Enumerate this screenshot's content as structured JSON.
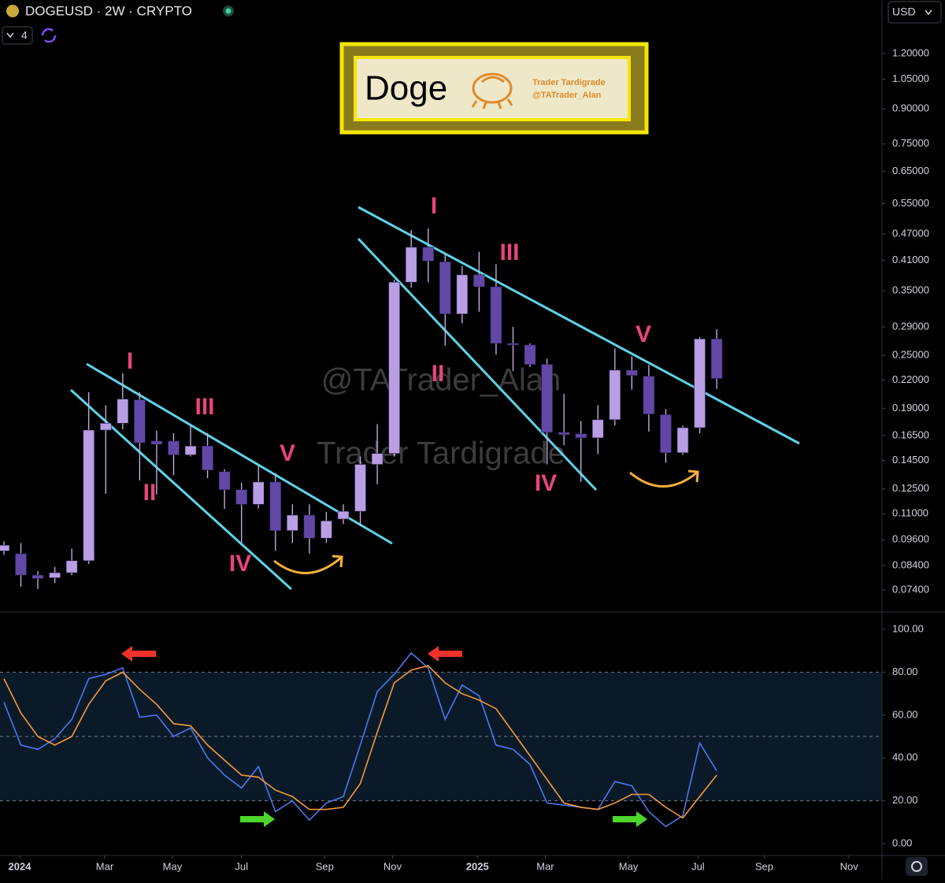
{
  "header": {
    "symbol": "DOGEUSD · 2W · CRYPTO",
    "indicator_count": 4,
    "currency": "USD"
  },
  "logo": {
    "title": "Doge",
    "brand": "Trader Tardigrade",
    "handle": "@TATrader_Alan"
  },
  "watermark": [
    "@TATrader_Alan",
    "Trader Tardigrade"
  ],
  "chart_data": [
    {
      "type": "candlestick",
      "log_scale": true,
      "up_color": "#b89ee2",
      "down_color": "#6148a6",
      "wick_color": "#c9b6ee",
      "ylim": [
        0.0665,
        1.584
      ],
      "yticks": [
        {
          "value": 1.2,
          "label": "1.20000"
        },
        {
          "value": 1.05,
          "label": "1.05000"
        },
        {
          "value": 0.9,
          "label": "0.90000"
        },
        {
          "value": 0.75,
          "label": "0.75000"
        },
        {
          "value": 0.65,
          "label": "0.65000"
        },
        {
          "value": 0.55,
          "label": "0.55000"
        },
        {
          "value": 0.47,
          "label": "0.47000"
        },
        {
          "value": 0.41,
          "label": "0.41000"
        },
        {
          "value": 0.35,
          "label": "0.35000"
        },
        {
          "value": 0.29,
          "label": "0.29000"
        },
        {
          "value": 0.25,
          "label": "0.25000"
        },
        {
          "value": 0.22,
          "label": "0.22000"
        },
        {
          "value": 0.19,
          "label": "0.19000"
        },
        {
          "value": 0.165,
          "label": "0.16500"
        },
        {
          "value": 0.145,
          "label": "0.14500"
        },
        {
          "value": 0.125,
          "label": "0.12500"
        },
        {
          "value": 0.11,
          "label": "0.11000"
        },
        {
          "value": 0.096,
          "label": "0.09600"
        },
        {
          "value": 0.084,
          "label": "0.08400"
        },
        {
          "value": 0.074,
          "label": "0.07400"
        }
      ],
      "open": [
        0.0906,
        0.0893,
        0.0799,
        0.0788,
        0.0809,
        0.0861,
        0.1697,
        0.1758,
        0.1986,
        0.1603,
        0.1603,
        0.1492,
        0.1562,
        0.1367,
        0.1245,
        0.1154,
        0.1296,
        0.1007,
        0.1091,
        0.0968,
        0.1069,
        0.1113,
        0.142,
        0.1503,
        0.3658,
        0.4386,
        0.4066,
        0.3102,
        0.3801,
        0.3572,
        0.2662,
        0.2641,
        0.2387,
        0.1677,
        0.1664,
        0.163,
        0.1791,
        0.2317,
        0.2245,
        0.1838,
        0.1509,
        0.1718,
        0.2725
      ],
      "high": [
        0.0952,
        0.0944,
        0.0816,
        0.0833,
        0.0917,
        0.2065,
        0.1931,
        0.2281,
        0.2065,
        0.1691,
        0.167,
        0.1738,
        0.167,
        0.1385,
        0.1291,
        0.1408,
        0.1358,
        0.1154,
        0.1154,
        0.1109,
        0.1154,
        0.148,
        0.1751,
        0.3701,
        0.4796,
        0.4835,
        0.4251,
        0.3982,
        0.4285,
        0.4016,
        0.29,
        0.2662,
        0.2459,
        0.2048,
        0.1778,
        0.1931,
        0.2592,
        0.249,
        0.238,
        0.1892,
        0.1738,
        0.2748,
        0.2864
      ],
      "low": [
        0.0888,
        0.0752,
        0.0743,
        0.0767,
        0.0799,
        0.0847,
        0.1219,
        0.1704,
        0.1306,
        0.1214,
        0.1342,
        0.148,
        0.1322,
        0.1127,
        0.0944,
        0.1131,
        0.0906,
        0.0944,
        0.0893,
        0.0944,
        0.1042,
        0.103,
        0.1281,
        0.148,
        0.3557,
        0.3658,
        0.2633,
        0.2954,
        0.3138,
        0.251,
        0.2305,
        0.2357,
        0.142,
        0.1569,
        0.1296,
        0.1498,
        0.1738,
        0.2092,
        0.1684,
        0.1432,
        0.1492,
        0.167,
        0.2101
      ],
      "close": [
        0.0933,
        0.0799,
        0.0785,
        0.0809,
        0.0861,
        0.1697,
        0.1758,
        0.1993,
        0.1589,
        0.1576,
        0.1492,
        0.1562,
        0.1379,
        0.1245,
        0.1154,
        0.1296,
        0.1007,
        0.1091,
        0.0968,
        0.1059,
        0.1113,
        0.142,
        0.1503,
        0.3658,
        0.4386,
        0.4083,
        0.3102,
        0.3801,
        0.3572,
        0.2662,
        0.2641,
        0.2387,
        0.1677,
        0.1657,
        0.163,
        0.1791,
        0.2317,
        0.2254,
        0.1845,
        0.1509,
        0.1718,
        0.2725,
        0.2218
      ],
      "annotations": [
        "I",
        "II",
        "III",
        "IV",
        "V",
        "I",
        "II",
        "III",
        "IV",
        "V"
      ]
    },
    {
      "type": "line",
      "ylim": [
        -5.1,
        107.7
      ],
      "yticks": [
        {
          "value": 100,
          "label": "100.00"
        },
        {
          "value": 80,
          "label": "80.00"
        },
        {
          "value": 60,
          "label": "60.00"
        },
        {
          "value": 40,
          "label": "40.00"
        },
        {
          "value": 20,
          "label": "20.00"
        },
        {
          "value": 0,
          "label": "0.00"
        }
      ],
      "levels": [
        80,
        50,
        20
      ],
      "band_color": "#0b1a28",
      "xlim": [
        -0.23,
        51.74
      ],
      "xticks": [
        {
          "value": 0.93,
          "label": "2024"
        },
        {
          "value": 5.94,
          "label": "Mar"
        },
        {
          "value": 9.93,
          "label": "May"
        },
        {
          "value": 14.0,
          "label": "Jul"
        },
        {
          "value": 18.9,
          "label": "Sep"
        },
        {
          "value": 22.9,
          "label": "Nov"
        },
        {
          "value": 27.9,
          "label": "2025"
        },
        {
          "value": 31.9,
          "label": "Mar"
        },
        {
          "value": 36.8,
          "label": "May"
        },
        {
          "value": 40.9,
          "label": "Jul"
        },
        {
          "value": 44.8,
          "label": "Sep"
        },
        {
          "value": 49.8,
          "label": "Nov"
        }
      ],
      "series": [
        {
          "color": "#4b78ee",
          "values": [
            66,
            46,
            44,
            49,
            58,
            77,
            79,
            82,
            59,
            60,
            50,
            54,
            40,
            32,
            26,
            36,
            15,
            20,
            11,
            19,
            22,
            46,
            71,
            79,
            89,
            82,
            58,
            74,
            69,
            46,
            44,
            37,
            19,
            18,
            17,
            16,
            29,
            27,
            15,
            8,
            13,
            47,
            34
          ]
        },
        {
          "color": "#f39a3c",
          "values": [
            77,
            61,
            50,
            46,
            50,
            65,
            76,
            80,
            72,
            65,
            56,
            55,
            46,
            39,
            32,
            31,
            25,
            22,
            16,
            16,
            17,
            28,
            52,
            75,
            81,
            83,
            75,
            70,
            67,
            63,
            52,
            41,
            30,
            19,
            17,
            16,
            19,
            23,
            23,
            17,
            12,
            22,
            32
          ]
        }
      ]
    }
  ]
}
